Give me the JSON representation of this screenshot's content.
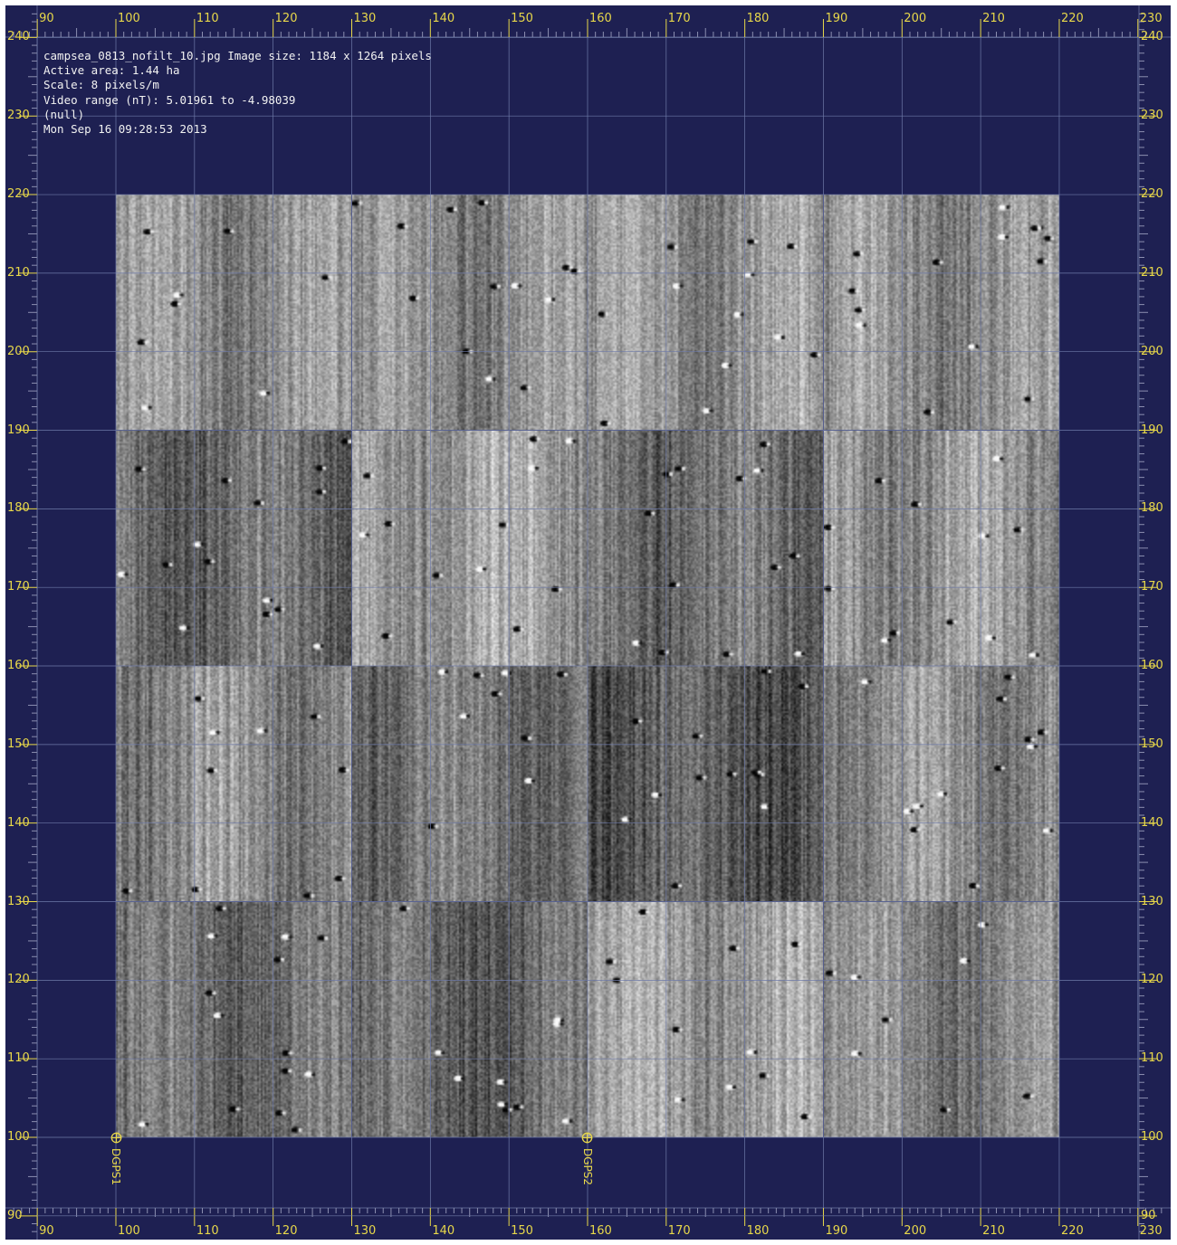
{
  "info": {
    "filename_line": "campsea_0813_nofilt_10.jpg Image size: 1184 x 1264 pixels",
    "area_line": "Active area: 1.44 ha",
    "scale_line": "Scale: 8 pixels/m",
    "range_line": "Video range (nT): 5.01961 to -4.98039",
    "null_line": "(null)",
    "date_line": "Mon Sep 16 09:28:53 2013"
  },
  "axes": {
    "x_ticks": [
      "90",
      "100",
      "110",
      "120",
      "130",
      "140",
      "150",
      "160",
      "170",
      "180",
      "190",
      "200",
      "210",
      "220",
      "230"
    ],
    "y_ticks": [
      "240",
      "230",
      "220",
      "210",
      "200",
      "190",
      "180",
      "170",
      "160",
      "150",
      "140",
      "130",
      "120",
      "110",
      "100",
      "90"
    ]
  },
  "survey": {
    "units": "m",
    "x_range": [
      100,
      220
    ],
    "y_range": [
      100,
      220
    ],
    "grid_size": 30,
    "tiles": [
      {
        "name": "tile-r1-c1",
        "row": 0,
        "col": 0,
        "tone": 0.56
      },
      {
        "name": "tile-r1-c2",
        "row": 0,
        "col": 1,
        "tone": 0.55
      },
      {
        "name": "tile-r1-c3",
        "row": 0,
        "col": 2,
        "tone": 0.58
      },
      {
        "name": "tile-r1-c4",
        "row": 0,
        "col": 3,
        "tone": 0.56
      },
      {
        "name": "tile-r2-c1",
        "row": 1,
        "col": 0,
        "tone": 0.42
      },
      {
        "name": "tile-r2-c2",
        "row": 1,
        "col": 1,
        "tone": 0.62
      },
      {
        "name": "tile-r2-c3",
        "row": 1,
        "col": 2,
        "tone": 0.44
      },
      {
        "name": "tile-r2-c4",
        "row": 1,
        "col": 3,
        "tone": 0.58
      },
      {
        "name": "tile-r3-c1",
        "row": 2,
        "col": 0,
        "tone": 0.54
      },
      {
        "name": "tile-r3-c2",
        "row": 2,
        "col": 1,
        "tone": 0.46
      },
      {
        "name": "tile-r3-c3",
        "row": 2,
        "col": 2,
        "tone": 0.36
      },
      {
        "name": "tile-r3-c4",
        "row": 2,
        "col": 3,
        "tone": 0.55
      },
      {
        "name": "tile-r4-c1",
        "row": 3,
        "col": 0,
        "tone": 0.44
      },
      {
        "name": "tile-r4-c2",
        "row": 3,
        "col": 1,
        "tone": 0.4
      },
      {
        "name": "tile-r4-c3",
        "row": 3,
        "col": 2,
        "tone": 0.62
      },
      {
        "name": "tile-r4-c4",
        "row": 3,
        "col": 3,
        "tone": 0.52
      }
    ]
  },
  "markers": [
    {
      "name": "dgps1-marker",
      "label": "DGPS1",
      "x": 100,
      "y": 100
    },
    {
      "name": "dgps2-marker",
      "label": "DGPS2",
      "x": 160,
      "y": 100
    }
  ],
  "colors": {
    "background": "#1e2052",
    "ruler_text": "#e8d84a",
    "grid_line": "#6e7aa8",
    "info_text": "#f2f2f2"
  }
}
